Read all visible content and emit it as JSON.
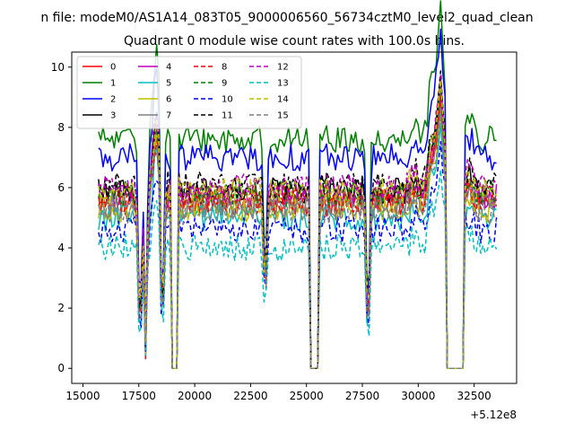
{
  "chart_data": {
    "type": "line",
    "suptitle": "n file: modeM0/AS1A14_083T05_9000006560_56734cztM0_level2_quad_clean",
    "title": "Quadrant 0 module wise count rates with 100.0s bins.",
    "xlabel": "",
    "ylabel": "",
    "x_offset_label": "+5.12e8",
    "xlim": [
      14500,
      34400
    ],
    "ylim": [
      -0.5,
      10.5
    ],
    "x_ticks": [
      15000,
      17500,
      20000,
      22500,
      25000,
      27500,
      30000,
      32500
    ],
    "x_tick_labels": [
      "15000",
      "17500",
      "20000",
      "22500",
      "25000",
      "27500",
      "30000",
      "32500"
    ],
    "y_ticks": [
      0,
      2,
      4,
      6,
      8,
      10
    ],
    "y_tick_labels": [
      "0",
      "2",
      "4",
      "6",
      "8",
      "10"
    ],
    "x_start": 15700,
    "x_end": 33500,
    "bin": 100,
    "gaps": [
      [
        19000,
        19250
      ],
      [
        25150,
        25550
      ],
      [
        31300,
        32000
      ]
    ],
    "dips": [
      [
        17550,
        0.8
      ],
      [
        17800,
        0.7
      ],
      [
        18550,
        1.0
      ],
      [
        23150,
        2.5
      ],
      [
        27750,
        0.8
      ]
    ],
    "peaks": [
      [
        18300,
        1.4
      ],
      [
        29800,
        1.1
      ],
      [
        30600,
        1.25
      ],
      [
        31000,
        1.55
      ],
      [
        32300,
        1.1
      ]
    ],
    "legend_position": "upper-left",
    "series": [
      {
        "name": "0",
        "color": "#ff0000",
        "dash": "solid",
        "level": 5.5
      },
      {
        "name": "1",
        "color": "#008000",
        "dash": "solid",
        "level": 7.6
      },
      {
        "name": "2",
        "color": "#0000ff",
        "dash": "solid",
        "level": 7.0
      },
      {
        "name": "3",
        "color": "#000000",
        "dash": "solid",
        "level": 5.9
      },
      {
        "name": "4",
        "color": "#bf00bf",
        "dash": "solid",
        "level": 5.7
      },
      {
        "name": "5",
        "color": "#00bfbf",
        "dash": "solid",
        "level": 5.0
      },
      {
        "name": "6",
        "color": "#bfbf00",
        "dash": "solid",
        "level": 5.3
      },
      {
        "name": "7",
        "color": "#808080",
        "dash": "solid",
        "level": 5.4
      },
      {
        "name": "8",
        "color": "#ff0000",
        "dash": "dashed",
        "level": 5.6
      },
      {
        "name": "9",
        "color": "#008000",
        "dash": "dashed",
        "level": 5.8
      },
      {
        "name": "10",
        "color": "#0000ff",
        "dash": "dashed",
        "level": 4.6
      },
      {
        "name": "11",
        "color": "#000000",
        "dash": "dashed",
        "level": 6.1
      },
      {
        "name": "12",
        "color": "#bf00bf",
        "dash": "dashed",
        "level": 6.0
      },
      {
        "name": "13",
        "color": "#00bfbf",
        "dash": "dashed",
        "level": 4.0
      },
      {
        "name": "14",
        "color": "#bfbf00",
        "dash": "dashed",
        "level": 5.9
      },
      {
        "name": "15",
        "color": "#808080",
        "dash": "dashed",
        "level": 5.2
      }
    ]
  }
}
